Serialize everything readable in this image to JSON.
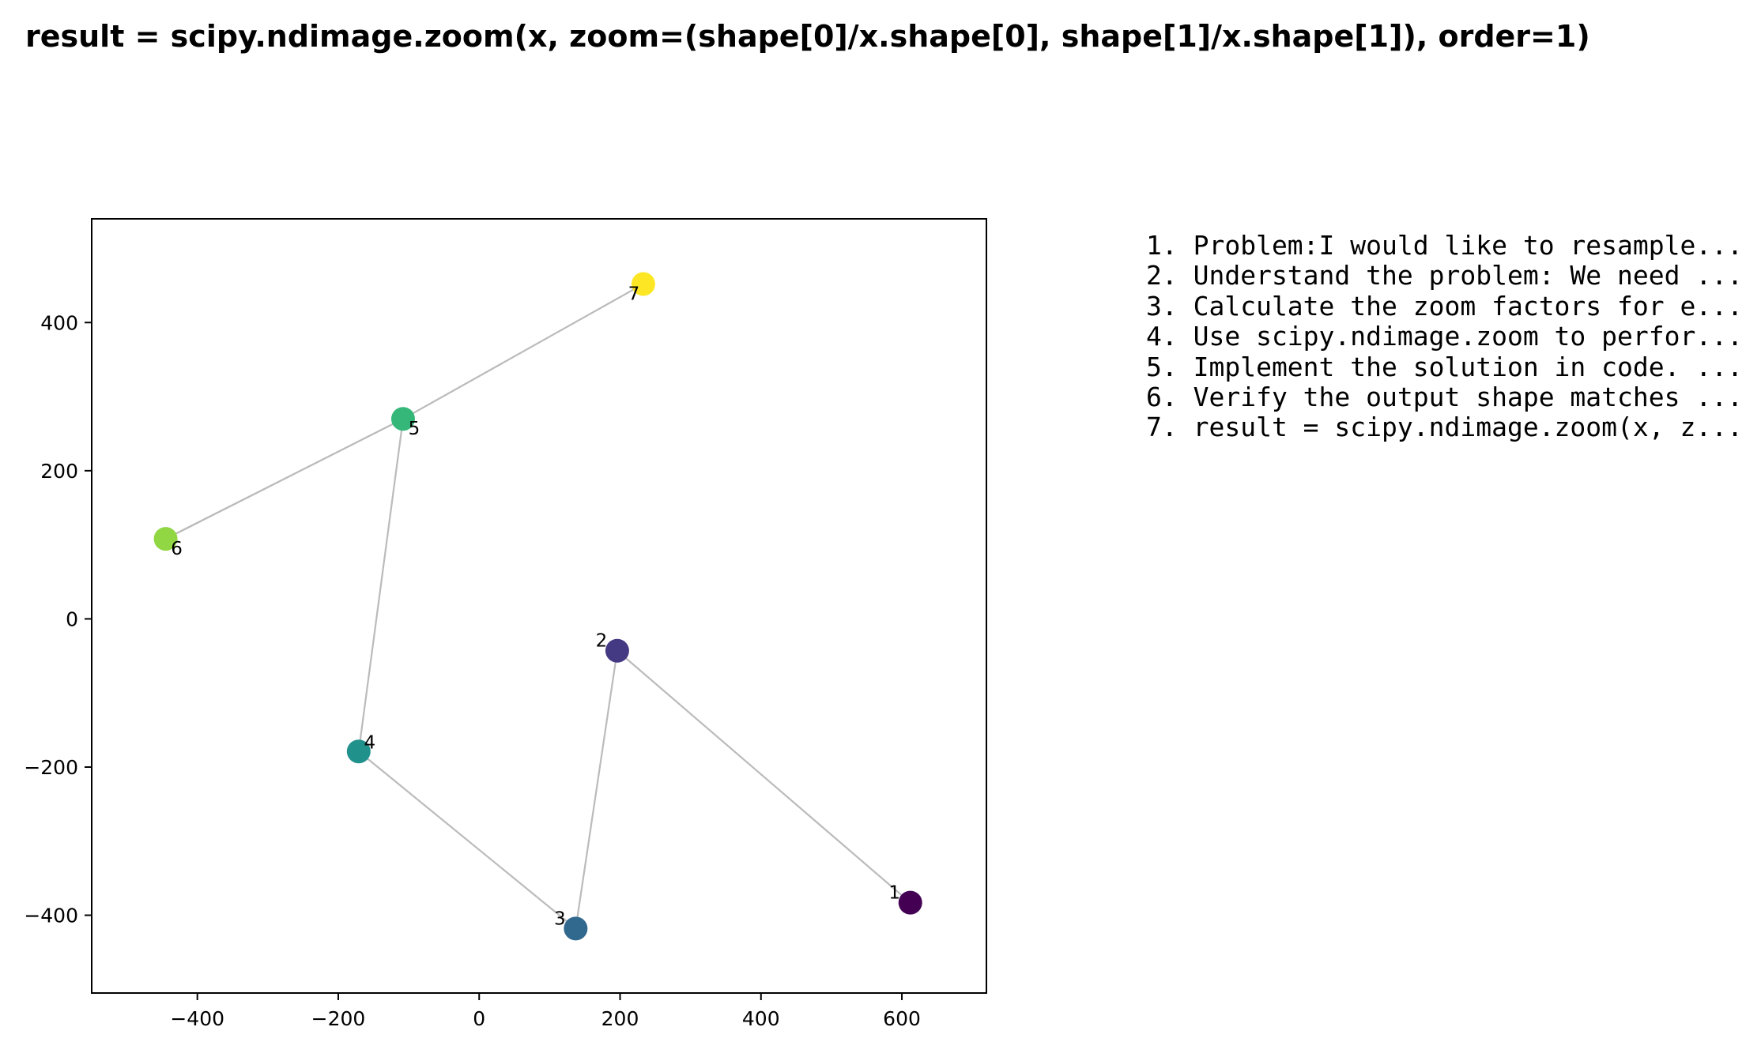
{
  "figure": {
    "title": "result = scipy.ndimage.zoom(x, zoom=(shape[0]/x.shape[0], shape[1]/x.shape[1]), order=1)"
  },
  "chart_data": {
    "type": "scatter",
    "title": "",
    "xlabel": "",
    "ylabel": "",
    "xlim": [
      -550,
      720
    ],
    "ylim": [
      -505,
      540
    ],
    "grid": false,
    "xticks": [
      -400,
      -200,
      0,
      200,
      400,
      600
    ],
    "yticks": [
      -400,
      -200,
      0,
      200,
      400
    ],
    "xtick_labels": [
      "−400",
      "−200",
      "0",
      "200",
      "400",
      "600"
    ],
    "ytick_labels": [
      "−400",
      "−200",
      "0",
      "200",
      "400"
    ],
    "colormap": "viridis",
    "line_color": "#bbbbbb",
    "points": [
      {
        "label": "1",
        "x": 612,
        "y": -383,
        "color": "#440154",
        "label_pos": "upper-left"
      },
      {
        "label": "2",
        "x": 196,
        "y": -43,
        "color": "#443983",
        "label_pos": "upper-left"
      },
      {
        "label": "3",
        "x": 137,
        "y": -418,
        "color": "#31688e",
        "label_pos": "upper-left"
      },
      {
        "label": "4",
        "x": -171,
        "y": -179,
        "color": "#21918c",
        "label_pos": "upper-right"
      },
      {
        "label": "5",
        "x": -108,
        "y": 270,
        "color": "#35b779",
        "label_pos": "lower-right"
      },
      {
        "label": "6",
        "x": -445,
        "y": 108,
        "color": "#90d743",
        "label_pos": "lower-right"
      },
      {
        "label": "7",
        "x": 233,
        "y": 452,
        "color": "#fde725",
        "label_pos": "lower-left"
      }
    ],
    "path_order": [
      "1",
      "2",
      "3",
      "4",
      "5",
      "6",
      "5",
      "7"
    ]
  },
  "steps": [
    "1. Problem:I would like to resample...",
    "2. Understand the problem: We need ...",
    "3. Calculate the zoom factors for e...",
    "4. Use scipy.ndimage.zoom to perfor...",
    "5. Implement the solution in code. ...",
    "6. Verify the output shape matches ...",
    "7. result = scipy.ndimage.zoom(x, z..."
  ]
}
